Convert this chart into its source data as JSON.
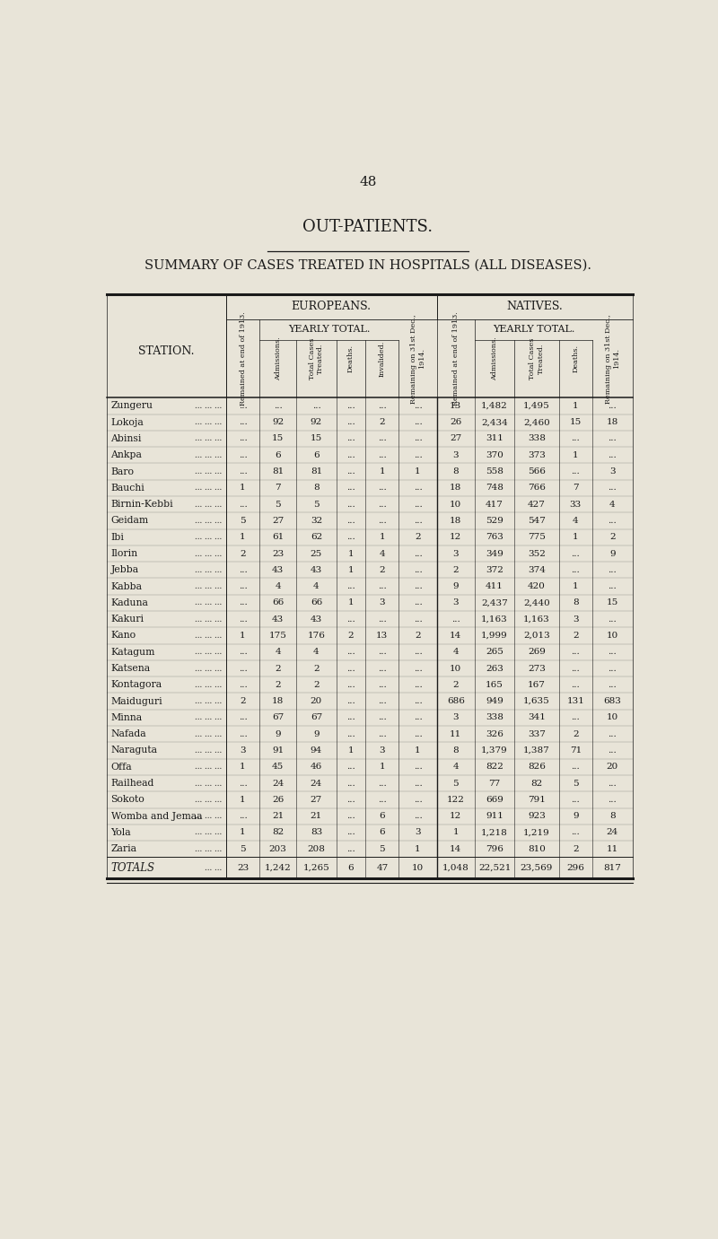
{
  "page_number": "48",
  "title1": "OUT-PATIENTS.",
  "title2": "SUMMARY OF CASES TREATED IN HOSPITALS (ALL DISEASES).",
  "bg_color": "#e8e4d8",
  "text_color": "#1a1a1a",
  "header_europeans": "EUROPEANS.",
  "header_natives": "NATIVES.",
  "stations": [
    "Zungeru",
    "Lokoja",
    "Abinsi",
    "Ankpa",
    "Baro",
    "Bauchi",
    "Birnin-Kebbi",
    "Geidam",
    "Ibi",
    "Ilorin",
    "Jebba",
    "Kabba",
    "Kaduna",
    "Kakuri",
    "Kano",
    "Katagum",
    "Katsena",
    "Kontagora",
    "Maiduguri",
    "Minna",
    "Nafada",
    "Naraguta",
    "Offa",
    "Railhead",
    "Sokoto",
    "Womba and Jemaa",
    "Yola",
    "Zaria"
  ],
  "data": [
    [
      "...",
      "...",
      "...",
      "...",
      "...",
      "...",
      "13",
      "1,482",
      "1,495",
      "1",
      "..."
    ],
    [
      "...",
      "92",
      "92",
      "...",
      "2",
      "...",
      "26",
      "2,434",
      "2,460",
      "15",
      "18"
    ],
    [
      "...",
      "15",
      "15",
      "...",
      "...",
      "...",
      "27",
      "311",
      "338",
      "...",
      "..."
    ],
    [
      "...",
      "6",
      "6",
      "...",
      "...",
      "...",
      "3",
      "370",
      "373",
      "1",
      "..."
    ],
    [
      "...",
      "81",
      "81",
      "...",
      "1",
      "1",
      "8",
      "558",
      "566",
      "...",
      "3"
    ],
    [
      "1",
      "7",
      "8",
      "...",
      "...",
      "...",
      "18",
      "748",
      "766",
      "7",
      "..."
    ],
    [
      "...",
      "5",
      "5",
      "...",
      "...",
      "...",
      "10",
      "417",
      "427",
      "33",
      "4"
    ],
    [
      "5",
      "27",
      "32",
      "...",
      "...",
      "...",
      "18",
      "529",
      "547",
      "4",
      "..."
    ],
    [
      "1",
      "61",
      "62",
      "...",
      "1",
      "2",
      "12",
      "763",
      "775",
      "1",
      "2"
    ],
    [
      "2",
      "23",
      "25",
      "1",
      "4",
      "...",
      "3",
      "349",
      "352",
      "...",
      "9"
    ],
    [
      "...",
      "43",
      "43",
      "1",
      "2",
      "...",
      "2",
      "372",
      "374",
      "...",
      "..."
    ],
    [
      "...",
      "4",
      "4",
      "...",
      "...",
      "...",
      "9",
      "411",
      "420",
      "1",
      "..."
    ],
    [
      "...",
      "66",
      "66",
      "1",
      "3",
      "...",
      "3",
      "2,437",
      "2,440",
      "8",
      "15"
    ],
    [
      "...",
      "43",
      "43",
      "...",
      "...",
      "...",
      "...",
      "1,163",
      "1,163",
      "3",
      "..."
    ],
    [
      "1",
      "175",
      "176",
      "2",
      "13",
      "2",
      "14",
      "1,999",
      "2,013",
      "2",
      "10"
    ],
    [
      "...",
      "4",
      "4",
      "...",
      "...",
      "...",
      "4",
      "265",
      "269",
      "...",
      "..."
    ],
    [
      "...",
      "2",
      "2",
      "...",
      "...",
      "...",
      "10",
      "263",
      "273",
      "...",
      "..."
    ],
    [
      "...",
      "2",
      "2",
      "...",
      "...",
      "...",
      "2",
      "165",
      "167",
      "...",
      "..."
    ],
    [
      "2",
      "18",
      "20",
      "...",
      "...",
      "...",
      "686",
      "949",
      "1,635",
      "131",
      "683"
    ],
    [
      "...",
      "67",
      "67",
      "...",
      "...",
      "...",
      "3",
      "338",
      "341",
      "...",
      "10"
    ],
    [
      "...",
      "9",
      "9",
      "...",
      "...",
      "...",
      "11",
      "326",
      "337",
      "2",
      "..."
    ],
    [
      "3",
      "91",
      "94",
      "1",
      "3",
      "1",
      "8",
      "1,379",
      "1,387",
      "71",
      "..."
    ],
    [
      "1",
      "45",
      "46",
      "...",
      "1",
      "...",
      "4",
      "822",
      "826",
      "...",
      "20"
    ],
    [
      "...",
      "24",
      "24",
      "...",
      "...",
      "...",
      "5",
      "77",
      "82",
      "5",
      "..."
    ],
    [
      "1",
      "26",
      "27",
      "...",
      "...",
      "...",
      "122",
      "669",
      "791",
      "...",
      "..."
    ],
    [
      "...",
      "21",
      "21",
      "...",
      "6",
      "...",
      "12",
      "911",
      "923",
      "9",
      "8"
    ],
    [
      "1",
      "82",
      "83",
      "...",
      "6",
      "3",
      "1",
      "1,218",
      "1,219",
      "...",
      "24"
    ],
    [
      "5",
      "203",
      "208",
      "...",
      "5",
      "1",
      "14",
      "796",
      "810",
      "2",
      "11"
    ]
  ],
  "totals": [
    "23",
    "1,242",
    "1,265",
    "6",
    "47",
    "10",
    "1,048",
    "22,521",
    "23,569",
    "296",
    "817"
  ],
  "col_header_labels": [
    "Remained at end of 1913.",
    "Admissions.",
    "Total Cases\nTreated.",
    "Deaths.",
    "Invalided.",
    "Remaining on 31st Dec.,\n1914.",
    "Remained at end of 1913.",
    "Admissions.",
    "Total Cases\nTreated.",
    "Deaths.",
    "Remaining on 31st Dec.,\n1914."
  ]
}
